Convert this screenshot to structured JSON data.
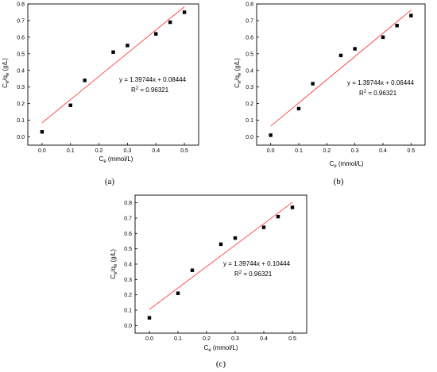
{
  "chart_data": [
    {
      "type": "scatter",
      "panel_label": "(a)",
      "xlabel_main": "C",
      "xlabel_sub": "e",
      "xlabel_unit": " (mmol/L)",
      "ylabel_parts": [
        "C",
        "e",
        "/q",
        "e",
        " (g/L)"
      ],
      "xlim": [
        -0.05,
        0.55
      ],
      "ylim": [
        -0.05,
        0.8
      ],
      "xticks": [
        0.0,
        0.1,
        0.2,
        0.3,
        0.4,
        0.5
      ],
      "yticks": [
        0.0,
        0.1,
        0.2,
        0.3,
        0.4,
        0.5,
        0.6,
        0.7,
        0.8
      ],
      "series": [
        {
          "x": [
            0.0,
            0.1,
            0.15,
            0.25,
            0.3,
            0.4,
            0.45,
            0.5
          ],
          "y": [
            0.03,
            0.19,
            0.34,
            0.51,
            0.55,
            0.62,
            0.69,
            0.75
          ]
        }
      ],
      "fit": {
        "slope": 1.39744,
        "intercept": 0.08444,
        "color": "#ff4040"
      },
      "equation": "y = 1.39744x + 0.08444",
      "r2_prefix": "R",
      "r2_sup": "2",
      "r2_value": " = 0.96321"
    },
    {
      "type": "scatter",
      "panel_label": "(b)",
      "xlabel_main": "C",
      "xlabel_sub": "e",
      "xlabel_unit": " (mmol/L)",
      "ylabel_parts": [
        "C",
        "e",
        "/q",
        "e",
        " (g/L)"
      ],
      "xlim": [
        -0.05,
        0.55
      ],
      "ylim": [
        -0.05,
        0.8
      ],
      "xticks": [
        0.0,
        0.1,
        0.2,
        0.3,
        0.4,
        0.5
      ],
      "yticks": [
        0.0,
        0.1,
        0.2,
        0.3,
        0.4,
        0.5,
        0.6,
        0.7,
        0.8
      ],
      "series": [
        {
          "x": [
            0.0,
            0.1,
            0.15,
            0.25,
            0.3,
            0.4,
            0.45,
            0.5
          ],
          "y": [
            0.01,
            0.17,
            0.32,
            0.49,
            0.53,
            0.6,
            0.67,
            0.73
          ]
        }
      ],
      "fit": {
        "slope": 1.39744,
        "intercept": 0.06444,
        "color": "#ff4040"
      },
      "equation": "y = 1.39744x + 0.06444",
      "r2_prefix": "R",
      "r2_sup": "2",
      "r2_value": " = 0.96321"
    },
    {
      "type": "scatter",
      "panel_label": "(c)",
      "xlabel_main": "C",
      "xlabel_sub": "e",
      "xlabel_unit": " (mmol/L)",
      "ylabel_parts": [
        "C",
        "e",
        "/q",
        "e",
        " (g/L)"
      ],
      "xlim": [
        -0.05,
        0.55
      ],
      "ylim": [
        -0.05,
        0.85
      ],
      "xticks": [
        0.0,
        0.1,
        0.2,
        0.3,
        0.4,
        0.5
      ],
      "yticks": [
        0.0,
        0.1,
        0.2,
        0.3,
        0.4,
        0.5,
        0.6,
        0.7,
        0.8
      ],
      "series": [
        {
          "x": [
            0.0,
            0.1,
            0.15,
            0.25,
            0.3,
            0.4,
            0.45,
            0.5
          ],
          "y": [
            0.05,
            0.21,
            0.36,
            0.53,
            0.57,
            0.64,
            0.71,
            0.77
          ]
        }
      ],
      "fit": {
        "slope": 1.39744,
        "intercept": 0.10444,
        "color": "#ff4040"
      },
      "equation": "y = 1.39744x + 0.10444",
      "r2_prefix": "R",
      "r2_sup": "2",
      "r2_value": " = 0.96321"
    }
  ]
}
